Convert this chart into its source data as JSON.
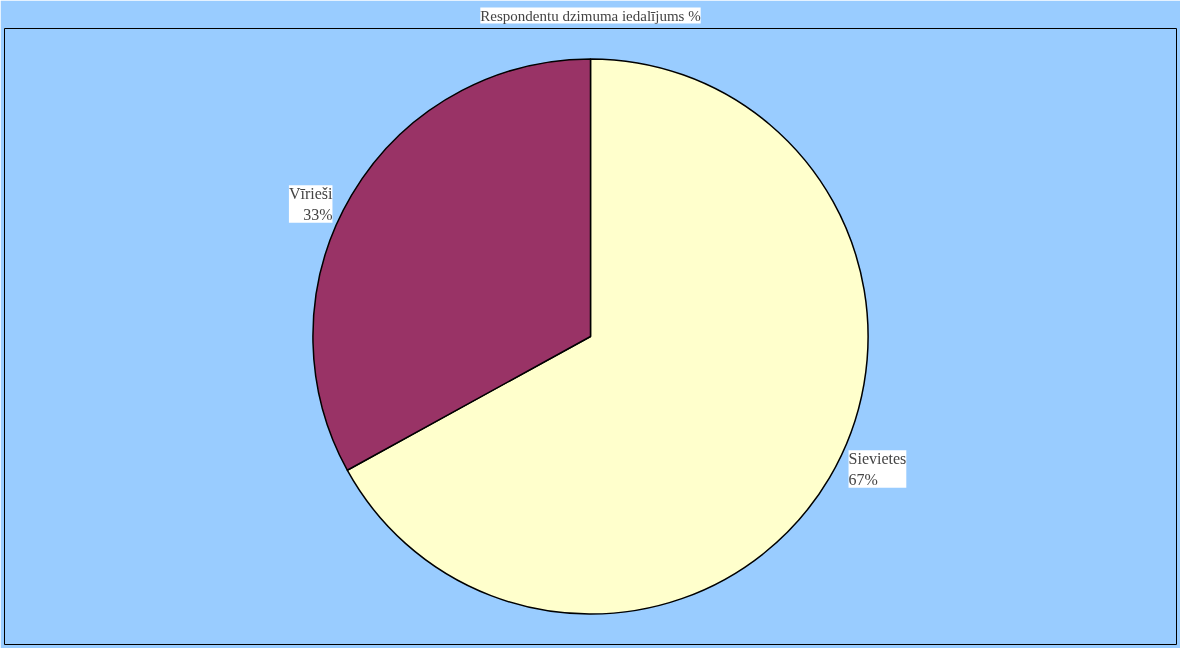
{
  "chart_data": {
    "type": "pie",
    "title": "Respondentu dzimuma iedalījums %",
    "categories": [
      "Sievietes",
      "Vīrieši"
    ],
    "values": [
      67,
      33
    ],
    "value_labels": [
      "67%",
      "33%"
    ],
    "colors": [
      "#ffffcc",
      "#993366"
    ]
  }
}
